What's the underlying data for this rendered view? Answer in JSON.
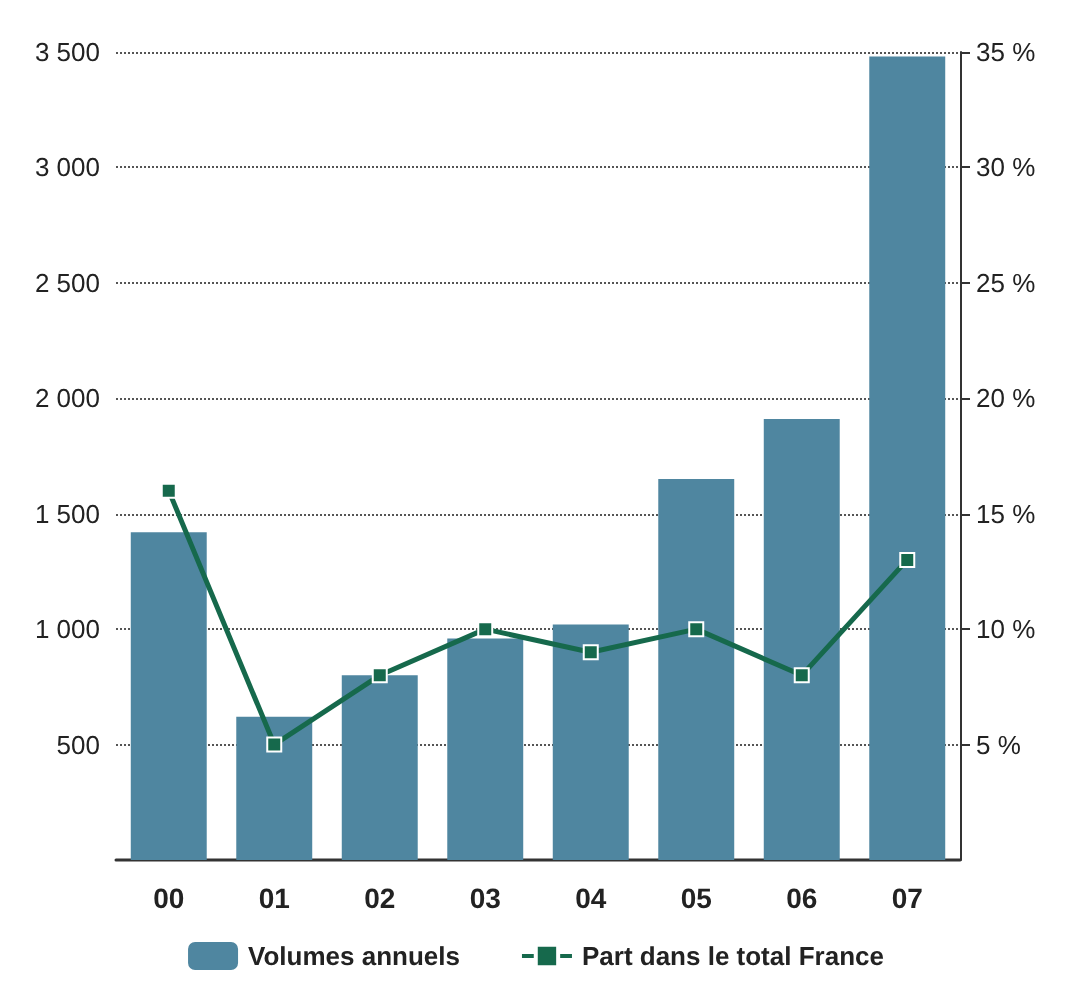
{
  "chart_data": {
    "type": "bar",
    "categories": [
      "00",
      "01",
      "02",
      "03",
      "04",
      "05",
      "06",
      "07"
    ],
    "series": [
      {
        "name": "Volumes annuels",
        "color": "#4f86a0",
        "values": [
          1420,
          620,
          800,
          960,
          1020,
          1650,
          1910,
          3480
        ]
      },
      {
        "name": "Part dans le total France",
        "type": "line",
        "axis": "y2",
        "color": "#16694c",
        "marker": "square",
        "values": [
          16,
          5,
          8,
          10,
          9,
          10,
          8,
          13
        ]
      }
    ],
    "ylim": [
      0,
      3500
    ],
    "yticks": [
      {
        "value": 500,
        "label": "500"
      },
      {
        "value": 1000,
        "label": "1 000"
      },
      {
        "value": 1500,
        "label": "1 500"
      },
      {
        "value": 2000,
        "label": "2 000"
      },
      {
        "value": 2500,
        "label": "2 500"
      },
      {
        "value": 3000,
        "label": "3 000"
      },
      {
        "value": 3500,
        "label": "3 500"
      }
    ],
    "y2lim": [
      0,
      35
    ],
    "y2ticks": [
      {
        "value": 5,
        "label": "5 %"
      },
      {
        "value": 10,
        "label": "10 %"
      },
      {
        "value": 15,
        "label": "15 %"
      },
      {
        "value": 20,
        "label": "20 %"
      },
      {
        "value": 25,
        "label": "25 %"
      },
      {
        "value": 30,
        "label": "30 %"
      },
      {
        "value": 35,
        "label": "35 %"
      }
    ],
    "grid": "y",
    "legend": "bottom"
  }
}
